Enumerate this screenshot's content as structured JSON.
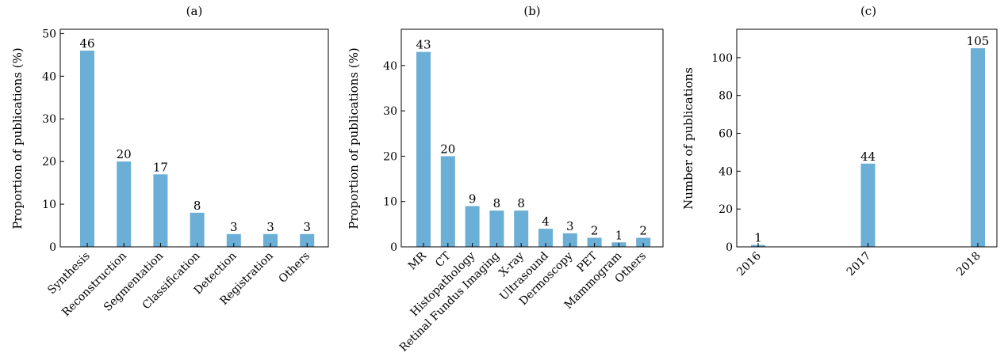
{
  "chart_data": [
    {
      "type": "bar",
      "title": "(a)",
      "xlabel": "",
      "ylabel": "Proportion of publications (%)",
      "categories": [
        "Synthesis",
        "Reconstruction",
        "Segmentation",
        "Classification",
        "Detection",
        "Registration",
        "Others"
      ],
      "values": [
        46,
        20,
        17,
        8,
        3,
        3,
        3
      ],
      "ylim": [
        0,
        51
      ],
      "yticks": [
        0,
        10,
        20,
        30,
        40,
        50
      ],
      "bar_color": "#6baed6",
      "grid": false
    },
    {
      "type": "bar",
      "title": "(b)",
      "xlabel": "",
      "ylabel": "Proportion of publications (%)",
      "categories": [
        "MR",
        "CT",
        "Histopathology",
        "Retinal Fundus Imaging",
        "X-ray",
        "Ultrasound",
        "Dermoscopy",
        "PET",
        "Mammogram",
        "Others"
      ],
      "values": [
        43,
        20,
        9,
        8,
        8,
        4,
        3,
        2,
        1,
        2
      ],
      "ylim": [
        0,
        48
      ],
      "yticks": [
        0,
        10,
        20,
        30,
        40
      ],
      "bar_color": "#6baed6",
      "grid": false
    },
    {
      "type": "bar",
      "title": "(c)",
      "xlabel": "",
      "ylabel": "Number of publications",
      "categories": [
        "2016",
        "2017",
        "2018"
      ],
      "values": [
        1,
        44,
        105
      ],
      "ylim": [
        0,
        115
      ],
      "yticks": [
        0,
        20,
        40,
        60,
        80,
        100
      ],
      "bar_color": "#6baed6",
      "grid": false
    }
  ]
}
